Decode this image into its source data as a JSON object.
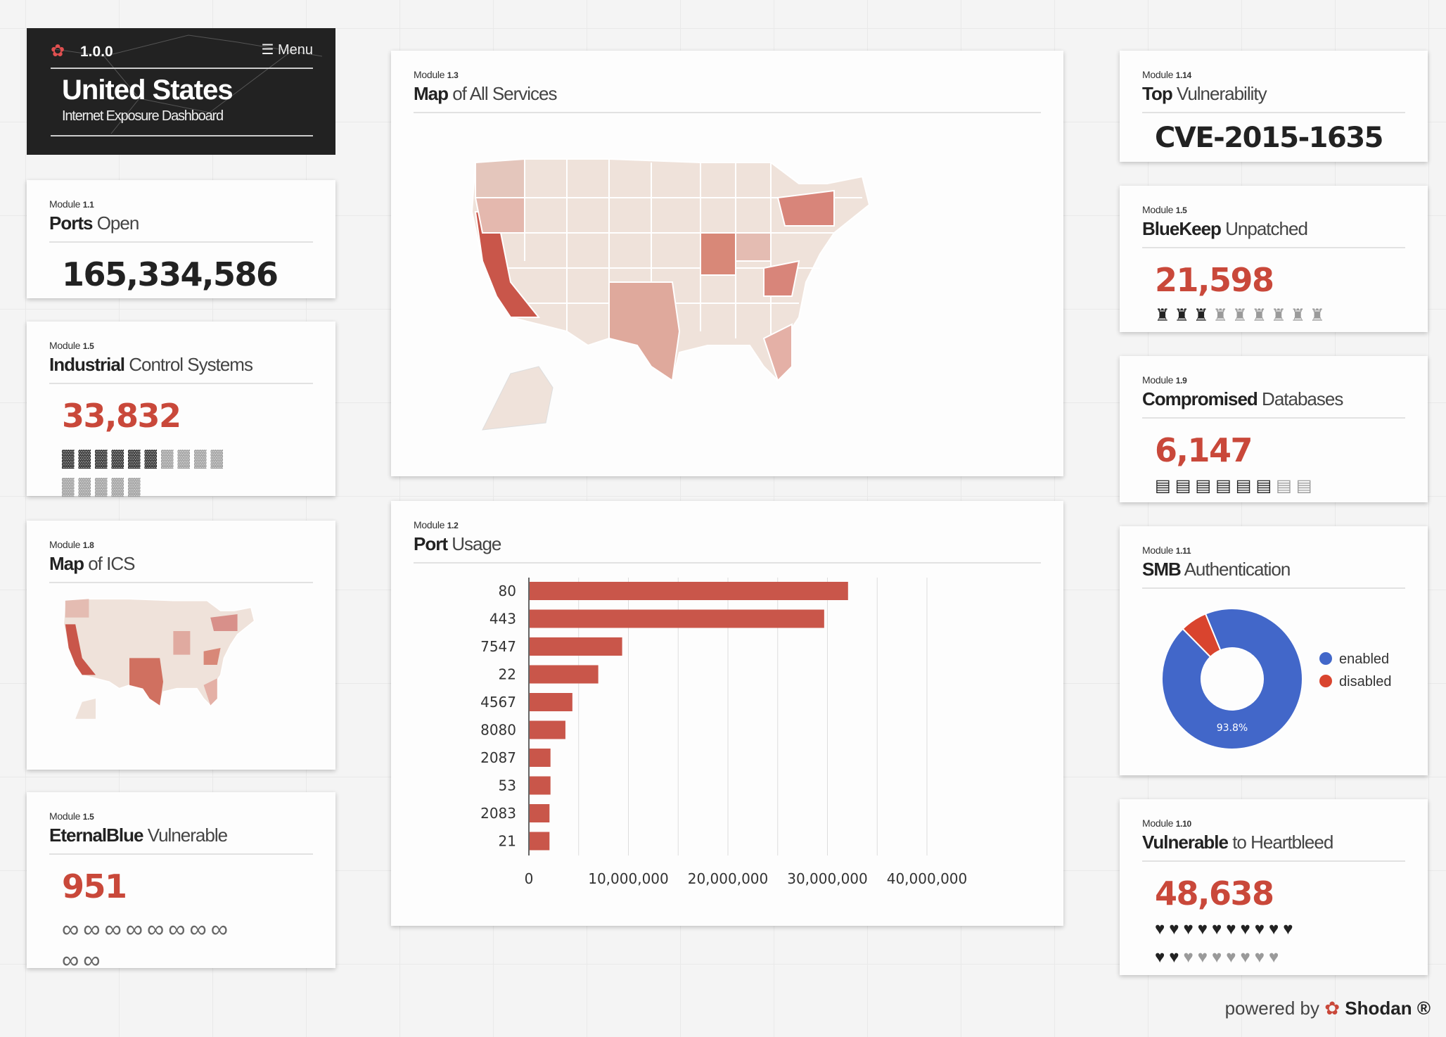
{
  "header": {
    "version": "1.0.0",
    "menu_label": "Menu",
    "title": "United States",
    "subtitle": "Internet Exposure Dashboard"
  },
  "modules": {
    "ports_open": {
      "module_label": "Module",
      "module_num": "1.1",
      "title_bold": "Ports",
      "title_rest": " Open",
      "value": "165,334,586"
    },
    "ics": {
      "module_label": "Module",
      "module_num": "1.5",
      "title_bold": "Industrial",
      "title_rest": " Control Systems",
      "value": "33,832",
      "icon": "factory-icon",
      "icons_on": 6,
      "icons_total": 15
    },
    "map_ics": {
      "module_label": "Module",
      "module_num": "1.8",
      "title_bold": "Map",
      "title_rest": " of ICS"
    },
    "eternalblue": {
      "module_label": "Module",
      "module_num": "1.5",
      "title_bold": "EternalBlue",
      "title_rest": " Vulnerable",
      "value": "951",
      "icon": "infinity-icon",
      "icons_total": 10
    },
    "map_all": {
      "module_label": "Module",
      "module_num": "1.3",
      "title_bold": "Map",
      "title_rest": " of All Services"
    },
    "port_usage": {
      "module_label": "Module",
      "module_num": "1.2",
      "title_bold": "Port",
      "title_rest": " Usage"
    },
    "top_vuln": {
      "module_label": "Module",
      "module_num": "1.14",
      "title_bold": "Top",
      "title_rest": " Vulnerability",
      "value": "CVE-2015-1635"
    },
    "bluekeep": {
      "module_label": "Module",
      "module_num": "1.5",
      "title_bold": "BlueKeep",
      "title_rest": " Unpatched",
      "value": "21,598",
      "icon": "rook-icon",
      "icons_on": 3,
      "icons_total": 9
    },
    "compromised_db": {
      "module_label": "Module",
      "module_num": "1.9",
      "title_bold": "Compromised",
      "title_rest": " Databases",
      "value": "6,147",
      "icon": "database-icon",
      "icons_on": 6,
      "icons_total": 8
    },
    "smb_auth": {
      "module_label": "Module",
      "module_num": "1.11",
      "title_bold": "SMB",
      "title_rest": " Authentication"
    },
    "heartbleed": {
      "module_label": "Module",
      "module_num": "1.10",
      "title_bold": "Vulnerable",
      "title_rest": " to Heartbleed",
      "value": "48,638",
      "icon": "heart-icon",
      "icons_on": 12,
      "icons_total": 19
    }
  },
  "footer": {
    "powered_by": "powered by",
    "brand": "Shodan ®"
  },
  "colors": {
    "accent": "#c9483a",
    "dark": "#222222",
    "pie_enabled": "#4267c9",
    "pie_disabled": "#d9442e"
  },
  "chart_data": [
    {
      "type": "bar",
      "orientation": "horizontal",
      "categories": [
        "80",
        "443",
        "7547",
        "22",
        "4567",
        "8080",
        "2087",
        "53",
        "2083",
        "21"
      ],
      "values": [
        32000000,
        29600000,
        9300000,
        6900000,
        4300000,
        3600000,
        2100000,
        2100000,
        2000000,
        2000000
      ],
      "xlim": [
        0,
        40000000
      ],
      "xticks": [
        "0",
        "10,000,000",
        "20,000,000",
        "30,000,000",
        "40,000,000"
      ],
      "color": "#c9564a",
      "grid": true
    },
    {
      "type": "pie",
      "donut": true,
      "labels": [
        "enabled",
        "disabled"
      ],
      "values": [
        93.8,
        6.2
      ],
      "slice_label": "93.8%",
      "colors": [
        "#4267c9",
        "#d9442e"
      ],
      "legend": "right"
    }
  ]
}
